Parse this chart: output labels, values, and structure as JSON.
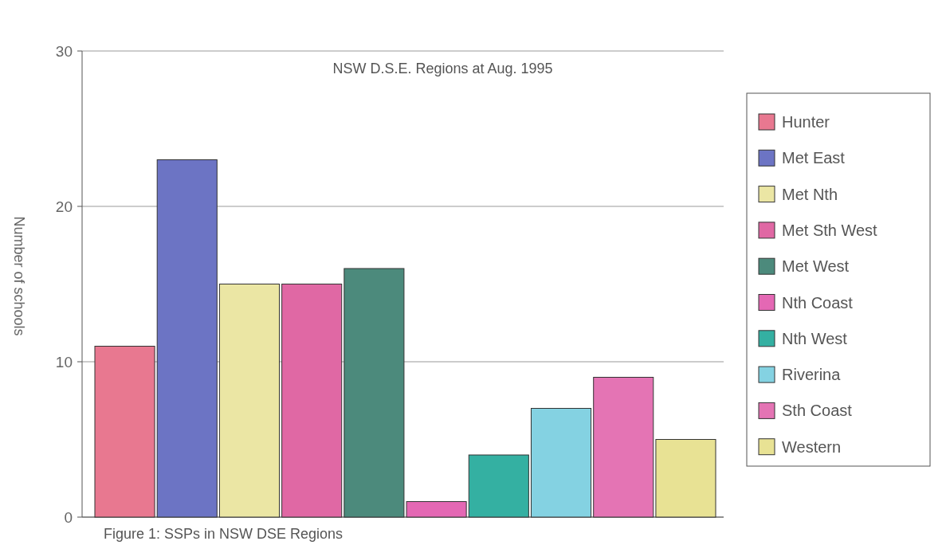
{
  "chart_data": {
    "type": "bar",
    "title": "NSW D.S.E. Regions at Aug. 1995",
    "ylabel": "Number of schools",
    "categories": [
      null,
      null,
      null,
      null,
      null,
      null,
      null,
      null,
      null,
      null
    ],
    "series": [
      {
        "name": "Hunter",
        "color": "#e87890",
        "values": [
          11,
          null,
          null,
          null,
          null,
          null,
          null,
          null,
          null,
          null
        ]
      },
      {
        "name": "Met East",
        "color": "#6c74c4",
        "values": [
          null,
          23,
          null,
          null,
          null,
          null,
          null,
          null,
          null,
          null
        ]
      },
      {
        "name": "Met Nth",
        "color": "#ebe6a4",
        "values": [
          null,
          null,
          15,
          null,
          null,
          null,
          null,
          null,
          null,
          null
        ]
      },
      {
        "name": "Met Sth West",
        "color": "#e068a4",
        "values": [
          null,
          null,
          null,
          15,
          null,
          null,
          null,
          null,
          null,
          null
        ]
      },
      {
        "name": "Met West",
        "color": "#4c8a7c",
        "values": [
          null,
          null,
          null,
          null,
          16,
          null,
          null,
          null,
          null,
          null
        ]
      },
      {
        "name": "Nth Coast",
        "color": "#e468b4",
        "values": [
          null,
          null,
          null,
          null,
          null,
          1,
          null,
          null,
          null,
          null
        ]
      },
      {
        "name": "Nth West",
        "color": "#34b0a2",
        "values": [
          null,
          null,
          null,
          null,
          null,
          null,
          4,
          null,
          null,
          null
        ]
      },
      {
        "name": "Riverina",
        "color": "#84d2e2",
        "values": [
          null,
          null,
          null,
          null,
          null,
          null,
          null,
          7,
          null,
          null
        ]
      },
      {
        "name": "Sth Coast",
        "color": "#e474b4",
        "values": [
          null,
          null,
          null,
          null,
          null,
          null,
          null,
          null,
          9,
          null
        ]
      },
      {
        "name": "Western",
        "color": "#e8e294",
        "values": [
          null,
          null,
          null,
          null,
          null,
          null,
          null,
          null,
          null,
          5
        ]
      }
    ],
    "ylim": [
      0,
      30
    ],
    "yticks": [
      0,
      10,
      20,
      30
    ],
    "grid": "y",
    "legend": "right",
    "tick_labels": "y",
    "annotations": [
      "Figure 1: SSPs in NSW  DSE Regions"
    ]
  }
}
